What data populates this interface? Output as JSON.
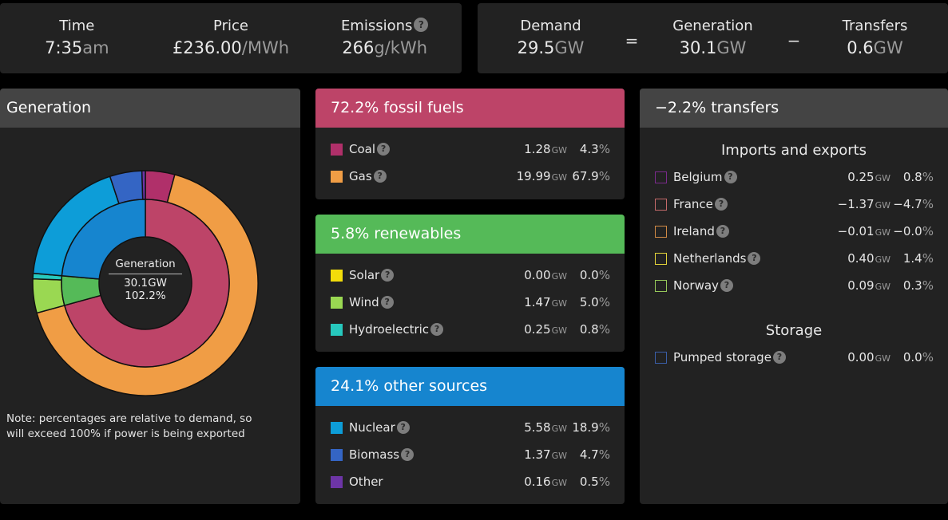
{
  "summary": {
    "time": {
      "label": "Time",
      "value": "7:35",
      "unit": "am"
    },
    "price": {
      "label": "Price",
      "value": "£236.00",
      "unit": "/MWh"
    },
    "emissions": {
      "label": "Emissions",
      "value": "266",
      "unit": "g/kWh",
      "help": "?"
    },
    "demand": {
      "label": "Demand",
      "value": "29.5",
      "unit": "GW"
    },
    "equals": "=",
    "generation": {
      "label": "Generation",
      "value": "30.1",
      "unit": "GW"
    },
    "minus": "−",
    "transfers": {
      "label": "Transfers",
      "value": "0.6",
      "unit": "GW"
    }
  },
  "generation_panel": {
    "title": "Generation",
    "center": {
      "label": "Generation",
      "total": "30.1GW",
      "percent": "102.2%"
    },
    "note": "Note: percentages are relative to demand, so will exceed 100% if power is being exported"
  },
  "fossil": {
    "title": "72.2% fossil fuels",
    "color": "#bd4468",
    "items": [
      {
        "name": "Coal",
        "help": "?",
        "gw": "1.28",
        "gw_unit": "GW",
        "pct": "4.3",
        "pct_unit": "%",
        "color": "#b0306a"
      },
      {
        "name": "Gas",
        "help": "?",
        "gw": "19.99",
        "gw_unit": "GW",
        "pct": "67.9",
        "pct_unit": "%",
        "color": "#f09d45"
      }
    ]
  },
  "renewables": {
    "title": "5.8% renewables",
    "color": "#55ba58",
    "items": [
      {
        "name": "Solar",
        "help": "?",
        "gw": "0.00",
        "gw_unit": "GW",
        "pct": "0.0",
        "pct_unit": "%",
        "color": "#f2dc0a"
      },
      {
        "name": "Wind",
        "help": "?",
        "gw": "1.47",
        "gw_unit": "GW",
        "pct": "5.0",
        "pct_unit": "%",
        "color": "#9ad852"
      },
      {
        "name": "Hydroelectric",
        "help": "?",
        "gw": "0.25",
        "gw_unit": "GW",
        "pct": "0.8",
        "pct_unit": "%",
        "color": "#27c8bd"
      }
    ]
  },
  "other": {
    "title": "24.1% other sources",
    "color": "#1685cf",
    "items": [
      {
        "name": "Nuclear",
        "help": "?",
        "gw": "5.58",
        "gw_unit": "GW",
        "pct": "18.9",
        "pct_unit": "%",
        "color": "#0d9dd8"
      },
      {
        "name": "Biomass",
        "help": "?",
        "gw": "1.37",
        "gw_unit": "GW",
        "pct": "4.7",
        "pct_unit": "%",
        "color": "#3465c4"
      },
      {
        "name": "Other",
        "help": null,
        "gw": "0.16",
        "gw_unit": "GW",
        "pct": "0.5",
        "pct_unit": "%",
        "color": "#6d35a6"
      }
    ]
  },
  "transfers": {
    "title": "−2.2% transfers",
    "imports_title": "Imports and exports",
    "items": [
      {
        "name": "Belgium",
        "help": "?",
        "gw": "0.25",
        "gw_unit": "GW",
        "pct": "0.8",
        "pct_unit": "%",
        "color": "#7a2a8c"
      },
      {
        "name": "France",
        "help": "?",
        "gw": "−1.37",
        "gw_unit": "GW",
        "pct": "−4.7",
        "pct_unit": "%",
        "color": "#c46a6a"
      },
      {
        "name": "Ireland",
        "help": "?",
        "gw": "−0.01",
        "gw_unit": "GW",
        "pct": "−0.0",
        "pct_unit": "%",
        "color": "#d08a45"
      },
      {
        "name": "Netherlands",
        "help": "?",
        "gw": "0.40",
        "gw_unit": "GW",
        "pct": "1.4",
        "pct_unit": "%",
        "color": "#e3d33a"
      },
      {
        "name": "Norway",
        "help": "?",
        "gw": "0.09",
        "gw_unit": "GW",
        "pct": "0.3",
        "pct_unit": "%",
        "color": "#96c85a"
      }
    ],
    "storage_title": "Storage",
    "storage": [
      {
        "name": "Pumped storage",
        "help": "?",
        "gw": "0.00",
        "gw_unit": "GW",
        "pct": "0.0",
        "pct_unit": "%",
        "color": "#3a5ea8"
      }
    ]
  },
  "chart_data": {
    "type": "pie",
    "title": "Generation",
    "inner_ring": [
      {
        "name": "Fossil fuels",
        "value": 72.2,
        "color": "#bd4468"
      },
      {
        "name": "Renewables",
        "value": 5.8,
        "color": "#55ba58"
      },
      {
        "name": "Other sources",
        "value": 24.1,
        "color": "#1685cf"
      }
    ],
    "outer_ring": [
      {
        "name": "Coal",
        "value": 4.3,
        "color": "#b0306a"
      },
      {
        "name": "Gas",
        "value": 67.9,
        "color": "#f09d45"
      },
      {
        "name": "Solar",
        "value": 0.0,
        "color": "#f2dc0a"
      },
      {
        "name": "Wind",
        "value": 5.0,
        "color": "#9ad852"
      },
      {
        "name": "Hydroelectric",
        "value": 0.8,
        "color": "#27c8bd"
      },
      {
        "name": "Nuclear",
        "value": 18.9,
        "color": "#0d9dd8"
      },
      {
        "name": "Biomass",
        "value": 4.7,
        "color": "#3465c4"
      },
      {
        "name": "Other",
        "value": 0.5,
        "color": "#6d35a6"
      }
    ],
    "center_text": [
      "Generation",
      "30.1GW",
      "102.2%"
    ]
  }
}
